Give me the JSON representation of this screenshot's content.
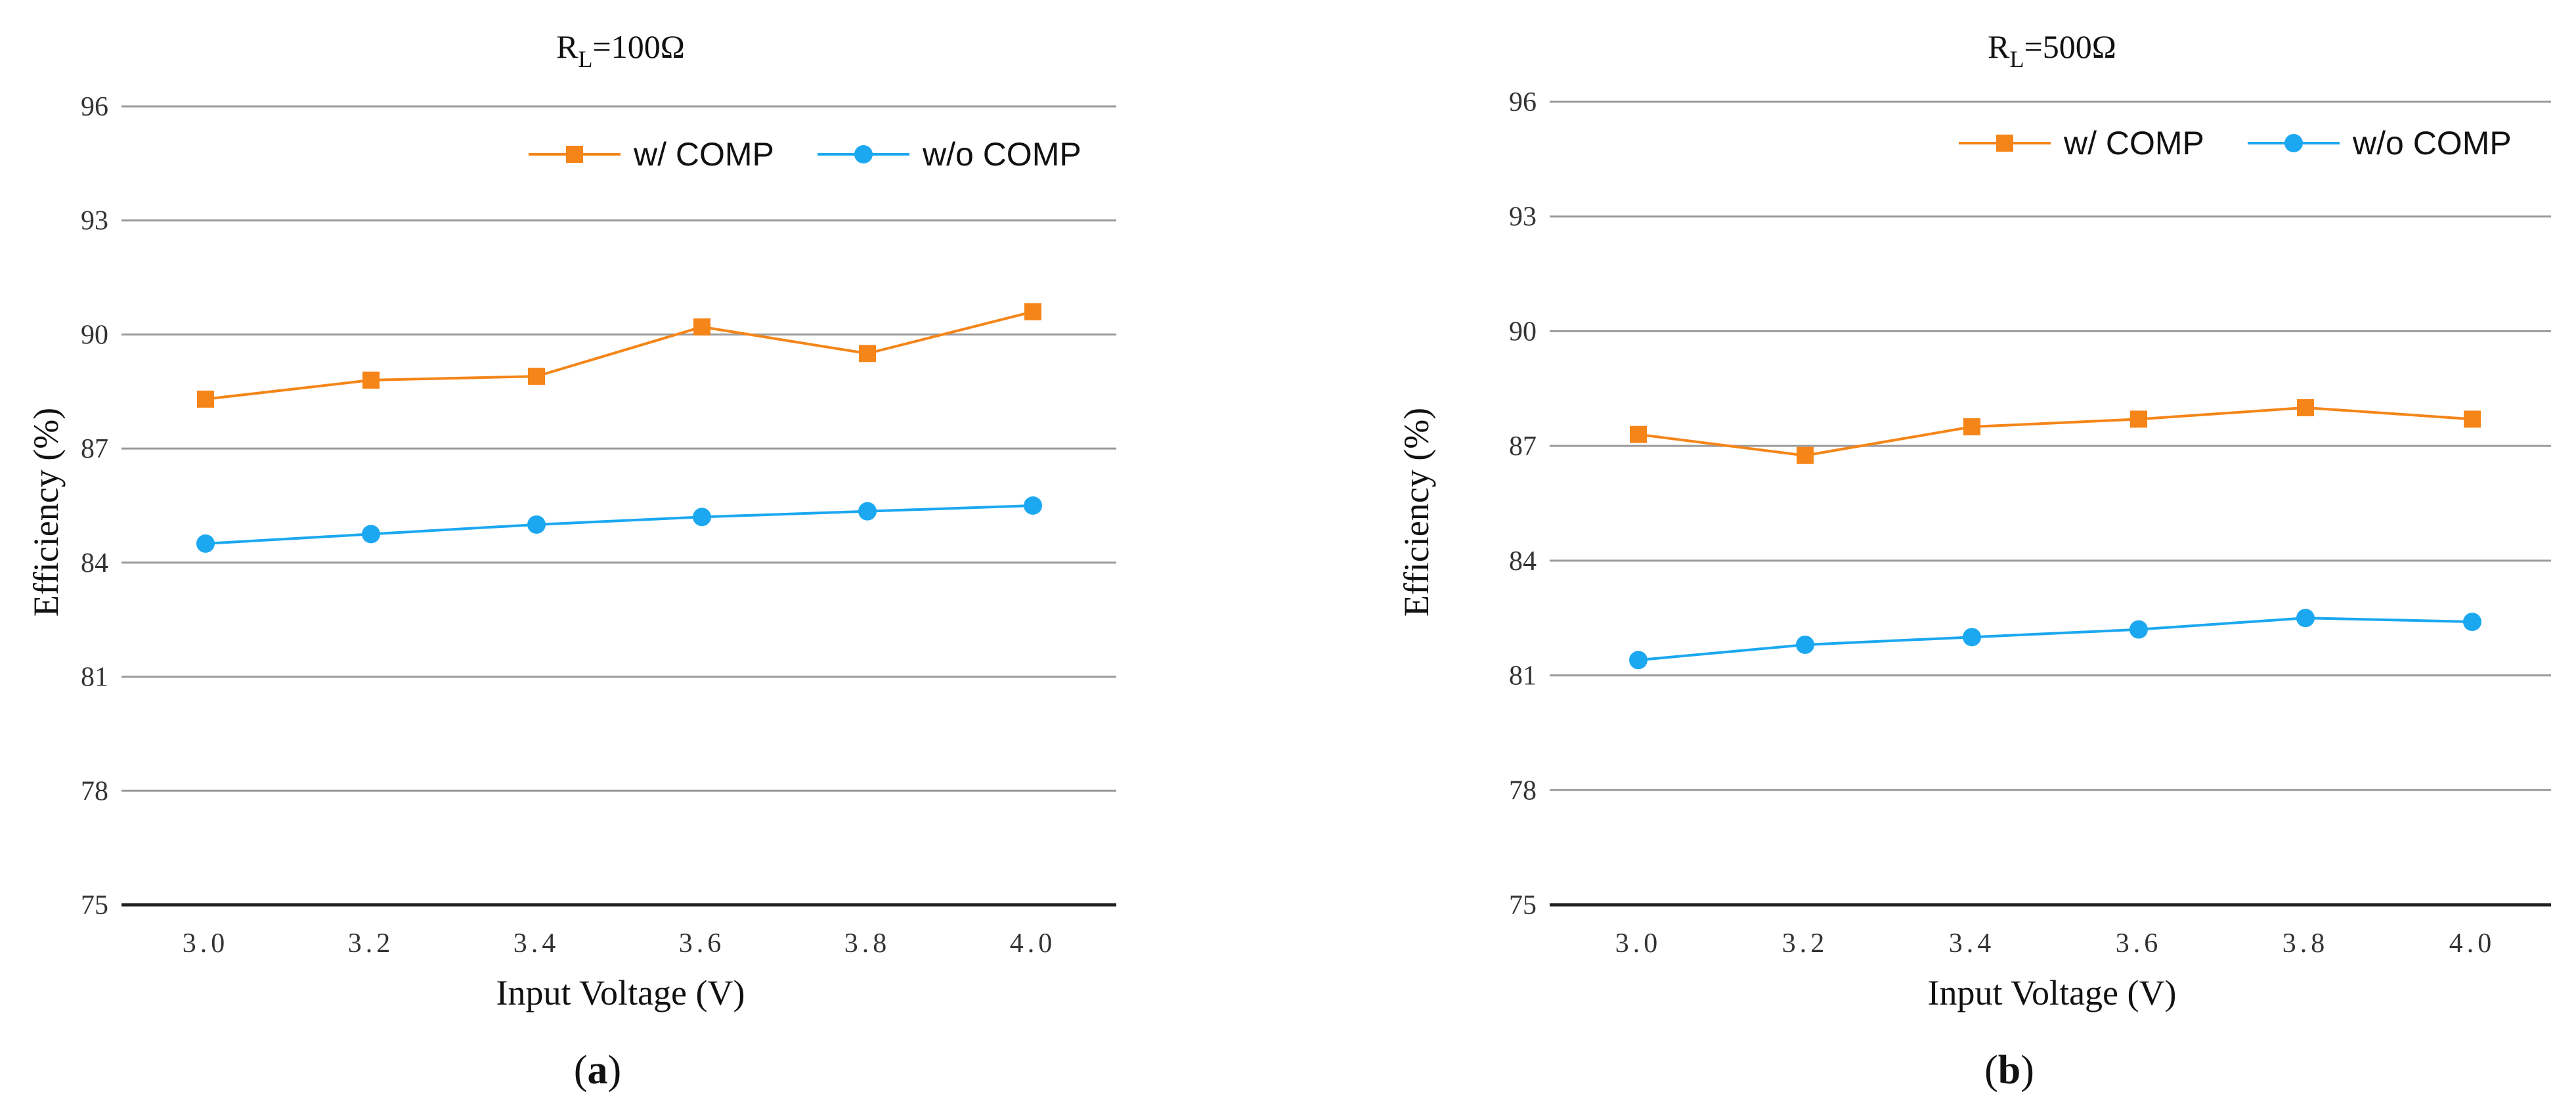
{
  "colors": {
    "series_orange": "#F58518",
    "series_blue": "#1BA8F0",
    "grid": "#9a9a9a"
  },
  "chart_data": [
    {
      "type": "line",
      "title_main": "R",
      "title_sub": "L",
      "title_rest": "=100Ω",
      "xlabel": "Input Voltage (V)",
      "ylabel": "Efficiency (%)",
      "caption_pre": "(",
      "caption_letter": "a",
      "caption_post": ")",
      "categories": [
        "3.0",
        "3.2",
        "3.4",
        "3.6",
        "3.8",
        "4.0"
      ],
      "ylim": [
        75,
        96
      ],
      "yticks": [
        "75",
        "78",
        "81",
        "84",
        "87",
        "90",
        "93",
        "96"
      ],
      "legend_position": "top-right",
      "series": [
        {
          "name": "w/ COMP",
          "marker": "square",
          "values": [
            88.3,
            88.8,
            88.9,
            90.2,
            89.5,
            90.6
          ]
        },
        {
          "name": "w/o COMP",
          "marker": "circle",
          "values": [
            84.5,
            84.75,
            85.0,
            85.2,
            85.35,
            85.5
          ]
        }
      ]
    },
    {
      "type": "line",
      "title_main": "R",
      "title_sub": "L",
      "title_rest": "=500Ω",
      "xlabel": "Input Voltage (V)",
      "ylabel": "Efficiency (%)",
      "caption_pre": "(",
      "caption_letter": "b",
      "caption_post": ")",
      "categories": [
        "3.0",
        "3.2",
        "3.4",
        "3.6",
        "3.8",
        "4.0"
      ],
      "ylim": [
        75,
        96
      ],
      "yticks": [
        "75",
        "78",
        "81",
        "84",
        "87",
        "90",
        "93",
        "96"
      ],
      "legend_position": "top-right",
      "series": [
        {
          "name": "w/ COMP",
          "marker": "square",
          "values": [
            87.3,
            86.75,
            87.5,
            87.7,
            88.0,
            87.7
          ]
        },
        {
          "name": "w/o COMP",
          "marker": "circle",
          "values": [
            81.4,
            81.8,
            82.0,
            82.2,
            82.5,
            82.4
          ]
        }
      ]
    }
  ]
}
